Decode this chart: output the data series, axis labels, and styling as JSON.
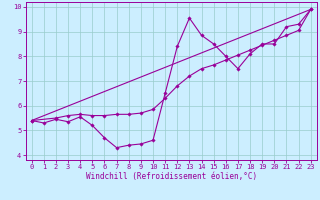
{
  "title": "",
  "xlabel": "Windchill (Refroidissement éolien,°C)",
  "ylabel": "",
  "xlim": [
    -0.5,
    23.5
  ],
  "ylim": [
    3.8,
    10.2
  ],
  "xticks": [
    0,
    1,
    2,
    3,
    4,
    5,
    6,
    7,
    8,
    9,
    10,
    11,
    12,
    13,
    14,
    15,
    16,
    17,
    18,
    19,
    20,
    21,
    22,
    23
  ],
  "yticks": [
    4,
    5,
    6,
    7,
    8,
    9,
    10
  ],
  "background_color": "#cceeff",
  "grid_color": "#99cccc",
  "line_color": "#990099",
  "curve1_x": [
    0,
    1,
    2,
    3,
    4,
    5,
    6,
    7,
    8,
    9,
    10,
    11,
    12,
    13,
    14,
    15,
    16,
    17,
    18,
    19,
    20,
    21,
    22,
    23
  ],
  "curve1_y": [
    5.4,
    5.3,
    5.45,
    5.35,
    5.55,
    5.2,
    4.7,
    4.3,
    4.4,
    4.45,
    4.6,
    6.5,
    8.4,
    9.55,
    8.85,
    8.5,
    8.0,
    7.5,
    8.1,
    8.5,
    8.5,
    9.2,
    9.3,
    9.9
  ],
  "curve2_x": [
    0,
    2,
    3,
    4,
    5,
    6,
    7,
    8,
    9,
    10,
    11,
    12,
    13,
    14,
    15,
    16,
    17,
    18,
    19,
    20,
    21,
    22,
    23
  ],
  "curve2_y": [
    5.4,
    5.5,
    5.6,
    5.65,
    5.6,
    5.6,
    5.65,
    5.65,
    5.7,
    5.85,
    6.3,
    6.8,
    7.2,
    7.5,
    7.65,
    7.85,
    8.05,
    8.25,
    8.45,
    8.65,
    8.85,
    9.05,
    9.9
  ],
  "curve3_x": [
    0,
    23
  ],
  "curve3_y": [
    5.4,
    9.9
  ],
  "marker_size": 1.8,
  "line_width": 0.8,
  "tick_fontsize": 5,
  "xlabel_fontsize": 5.5
}
